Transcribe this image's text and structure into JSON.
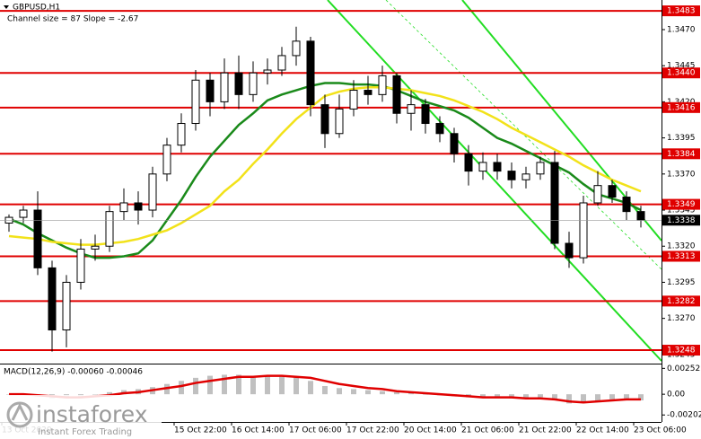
{
  "chart_data": [
    {
      "type": "candlestick",
      "title": "GBPUSD,H1",
      "annotation": "Channel size = 87 Slope = -2.67",
      "categories": [
        "13 Oct 2020",
        null,
        null,
        null,
        null,
        null,
        null,
        null,
        null,
        null,
        null,
        null,
        "15 Oct 22:00",
        null,
        null,
        null,
        "16 Oct 14:00",
        null,
        null,
        null,
        "17 Oct 06:00",
        null,
        null,
        null,
        "17 Oct 22:00",
        null,
        null,
        null,
        "20 Oct 14:00",
        null,
        null,
        null,
        "21 Oct 06:00",
        null,
        null,
        null,
        "21 Oct 22:00",
        null,
        null,
        null,
        "22 Oct 14:00",
        null,
        null,
        null,
        "23 Oct 06:00"
      ],
      "open": [
        1.3336,
        1.334,
        1.3345,
        1.3305,
        1.3262,
        1.3295,
        1.3318,
        1.332,
        1.3344,
        1.335,
        1.3345,
        1.337,
        1.339,
        1.3405,
        1.3435,
        1.342,
        1.344,
        1.3425,
        1.344,
        1.3442,
        1.3452,
        1.3462,
        1.3418,
        1.3398,
        1.3415,
        1.3428,
        1.3425,
        1.3438,
        1.3412,
        1.3418,
        1.3405,
        1.3398,
        1.3384,
        1.3372,
        1.3378,
        1.3372,
        1.3366,
        1.337,
        1.3378,
        1.3322,
        1.3312,
        1.335,
        1.3362,
        1.3354,
        1.3344
      ],
      "high": [
        1.3342,
        1.3348,
        1.3358,
        1.331,
        1.33,
        1.3325,
        1.3328,
        1.3348,
        1.336,
        1.3358,
        1.3375,
        1.3395,
        1.3412,
        1.3442,
        1.344,
        1.345,
        1.3452,
        1.3448,
        1.345,
        1.3458,
        1.3472,
        1.3465,
        1.3425,
        1.3425,
        1.3435,
        1.3438,
        1.3445,
        1.344,
        1.3428,
        1.3422,
        1.341,
        1.3402,
        1.339,
        1.3385,
        1.3384,
        1.3378,
        1.3375,
        1.3382,
        1.3386,
        1.333,
        1.3355,
        1.3372,
        1.3366,
        1.3358,
        1.3348
      ],
      "low": [
        1.333,
        1.3336,
        1.33,
        1.3247,
        1.325,
        1.329,
        1.331,
        1.3316,
        1.3338,
        1.3335,
        1.334,
        1.3365,
        1.3385,
        1.34,
        1.341,
        1.3415,
        1.3415,
        1.342,
        1.3432,
        1.3438,
        1.3445,
        1.341,
        1.3388,
        1.3395,
        1.341,
        1.3418,
        1.342,
        1.3405,
        1.34,
        1.3398,
        1.3392,
        1.3378,
        1.3362,
        1.3366,
        1.3366,
        1.336,
        1.336,
        1.3366,
        1.3318,
        1.3305,
        1.3308,
        1.3348,
        1.335,
        1.3338,
        1.3333
      ],
      "close": [
        1.334,
        1.3345,
        1.3305,
        1.3262,
        1.3295,
        1.3318,
        1.332,
        1.3344,
        1.335,
        1.3345,
        1.337,
        1.339,
        1.3405,
        1.3435,
        1.342,
        1.344,
        1.3425,
        1.344,
        1.3442,
        1.3452,
        1.3462,
        1.3418,
        1.3398,
        1.3415,
        1.3428,
        1.3425,
        1.3438,
        1.3412,
        1.3418,
        1.3405,
        1.3398,
        1.3384,
        1.3372,
        1.3378,
        1.3372,
        1.3366,
        1.337,
        1.3378,
        1.3322,
        1.3312,
        1.335,
        1.3362,
        1.3354,
        1.3344,
        1.3338
      ],
      "candle_color": "#000000",
      "series": [
        {
          "color": "#1a8a1a",
          "values": [
            1.3339,
            1.3335,
            1.3329,
            1.3324,
            1.3319,
            1.3315,
            1.3312,
            1.3312,
            1.3313,
            1.3315,
            1.3324,
            1.3338,
            1.3352,
            1.3368,
            1.3382,
            1.3393,
            1.3404,
            1.3412,
            1.3421,
            1.3425,
            1.3428,
            1.3431,
            1.3433,
            1.3433,
            1.3432,
            1.3432,
            1.3431,
            1.3428,
            1.3424,
            1.342,
            1.3417,
            1.3414,
            1.3409,
            1.3402,
            1.3395,
            1.3391,
            1.3386,
            1.3381,
            1.3376,
            1.3371,
            1.3363,
            1.3356,
            1.3353,
            1.335,
            1.3345
          ]
        },
        {
          "color": "#f2e21a",
          "values": [
            1.3327,
            1.3326,
            1.3325,
            1.3323,
            1.3322,
            1.3321,
            1.3321,
            1.3322,
            1.3323,
            1.3325,
            1.3328,
            1.3331,
            1.3336,
            1.3342,
            1.3348,
            1.3358,
            1.3366,
            1.3377,
            1.3387,
            1.3398,
            1.3408,
            1.3416,
            1.3424,
            1.3427,
            1.3429,
            1.343,
            1.343,
            1.3429,
            1.3428,
            1.3426,
            1.3424,
            1.3421,
            1.3417,
            1.3413,
            1.3408,
            1.3402,
            1.3397,
            1.3392,
            1.3387,
            1.3382,
            1.3376,
            1.3371,
            1.3366,
            1.3362,
            1.3358
          ]
        }
      ],
      "levels": [
        {
          "value": 1.3483,
          "label": "1.3483"
        },
        {
          "value": 1.344,
          "label": "1.3440"
        },
        {
          "value": 1.3416,
          "label": "1.3416"
        },
        {
          "value": 1.3384,
          "label": "1.3384"
        },
        {
          "value": 1.3349,
          "label": "1.3349"
        },
        {
          "value": 1.3313,
          "label": "1.3313"
        },
        {
          "value": 1.3282,
          "label": "1.3282"
        },
        {
          "value": 1.3248,
          "label": "1.3248"
        }
      ],
      "level_color": "#e00000",
      "current_price": {
        "value": 1.3338,
        "label": "1.3338"
      },
      "ylim": [
        1.32387,
        1.34905
      ],
      "yticks": [
        {
          "value": 1.347,
          "label": "1.3470"
        },
        {
          "value": 1.3445,
          "label": "1.3445"
        },
        {
          "value": 1.342,
          "label": "1.3420"
        },
        {
          "value": 1.3395,
          "label": "1.3395"
        },
        {
          "value": 1.337,
          "label": "1.3370"
        },
        {
          "value": 1.3345,
          "label": "1.3345"
        },
        {
          "value": 1.332,
          "label": "1.3320"
        },
        {
          "value": 1.3295,
          "label": "1.3295"
        },
        {
          "value": 1.327,
          "label": "1.3270"
        },
        {
          "value": 1.3245,
          "label": "1.3245"
        }
      ]
    },
    {
      "type": "macd",
      "title": "MACD(12,26,9) -0.00060 -0.00046",
      "values": [
        0,
        0,
        -0.0002,
        -0.0004,
        -0.0004,
        -0.0002,
        0,
        0.0002,
        0.0004,
        0.0005,
        0.0007,
        0.001,
        0.0013,
        0.0016,
        0.0018,
        0.0019,
        0.0019,
        0.0018,
        0.0018,
        0.0017,
        0.0017,
        0.0013,
        0.0008,
        0.0006,
        0.0005,
        0.0004,
        0.0003,
        0.0002,
        0.0001,
        0,
        -0.0001,
        -0.0002,
        -0.0003,
        -0.0003,
        -0.0003,
        -0.0004,
        -0.0004,
        -0.0003,
        -0.0006,
        -0.0009,
        -0.0008,
        -0.0006,
        -0.0005,
        -0.0005,
        -0.0006
      ],
      "color": "#c0c0c0",
      "series": [
        {
          "color": "#e00000",
          "values": [
            0,
            0,
            -0.0001,
            -0.0002,
            -0.0003,
            -0.0003,
            -0.0002,
            -0.0001,
            0.0001,
            0.0002,
            0.0004,
            0.0006,
            0.0008,
            0.0011,
            0.0013,
            0.0015,
            0.0017,
            0.0017,
            0.0018,
            0.0018,
            0.0017,
            0.0016,
            0.0013,
            0.001,
            0.0008,
            0.0006,
            0.0005,
            0.0003,
            0.0002,
            0.0001,
            0,
            -0.0001,
            -0.0002,
            -0.0003,
            -0.0003,
            -0.0003,
            -0.0004,
            -0.0004,
            -0.0005,
            -0.0007,
            -0.0008,
            -0.0007,
            -0.0006,
            -0.0005,
            -0.0005
          ]
        }
      ],
      "ylim": [
        -0.0027,
        0.0029
      ],
      "yticks": [
        0.00252,
        {
          "value": 0,
          "label": "0.00"
        },
        -0.00202
      ]
    }
  ],
  "logo": {
    "name": "instaforex",
    "tagline": "Instant Forex Trading"
  }
}
